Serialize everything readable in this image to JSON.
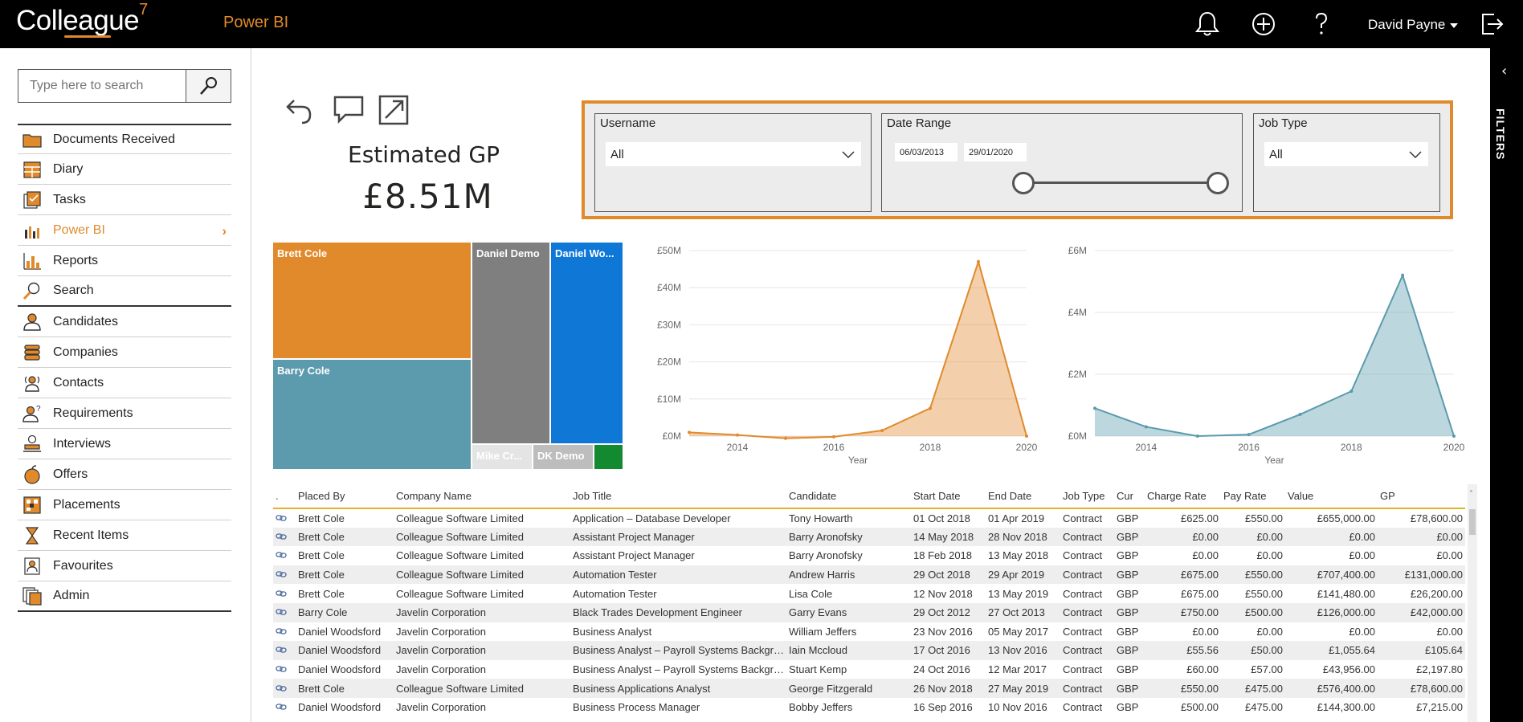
{
  "header": {
    "logo_text": "Colleague",
    "logo_sup": "7",
    "app_title": "Power BI",
    "user_name": "David Payne",
    "icons": [
      "bell-icon",
      "plus-circle-icon",
      "help-icon",
      "logout-icon"
    ]
  },
  "sidebar": {
    "search_placeholder": "Type here to search",
    "items": [
      {
        "label": "Documents Received",
        "icon": "folder-icon"
      },
      {
        "label": "Diary",
        "icon": "calendar-icon"
      },
      {
        "label": "Tasks",
        "icon": "tasks-icon"
      },
      {
        "label": "Power BI",
        "icon": "powerbi-icon",
        "active": true
      },
      {
        "label": "Reports",
        "icon": "bar-chart-icon"
      },
      {
        "label": "Search",
        "icon": "search-icon"
      },
      {
        "label": "Candidates",
        "icon": "person-icon"
      },
      {
        "label": "Companies",
        "icon": "companies-icon"
      },
      {
        "label": "Contacts",
        "icon": "contacts-icon"
      },
      {
        "label": "Requirements",
        "icon": "requirements-icon"
      },
      {
        "label": "Interviews",
        "icon": "interviews-icon"
      },
      {
        "label": "Offers",
        "icon": "offers-icon"
      },
      {
        "label": "Placements",
        "icon": "placements-icon"
      },
      {
        "label": "Recent Items",
        "icon": "hourglass-icon"
      },
      {
        "label": "Favourites",
        "icon": "favourites-icon"
      },
      {
        "label": "Admin",
        "icon": "admin-icon"
      }
    ]
  },
  "report": {
    "kpi_title": "Estimated GP",
    "kpi_value": "£8.51M",
    "filters_label": "FILTERS",
    "slicers": {
      "username": {
        "title": "Username",
        "value": "All"
      },
      "date_range": {
        "title": "Date Range",
        "start": "06/03/2013",
        "end": "29/01/2020"
      },
      "job_type": {
        "title": "Job Type",
        "value": "All"
      }
    },
    "treemap": [
      {
        "label": "Brett Cole",
        "color": "#e08a2c"
      },
      {
        "label": "Barry Cole",
        "color": "#5b9bad"
      },
      {
        "label": "Daniel Demo",
        "color": "#7f7f7f"
      },
      {
        "label": "Daniel Wo...",
        "color": "#0f78d6"
      },
      {
        "label": "Mike Cr...",
        "color": "#e4e4e4"
      },
      {
        "label": "DK Demo",
        "color": "#bdbdbd"
      },
      {
        "label": "",
        "color": "#138a2f"
      }
    ]
  },
  "chart_data": [
    {
      "type": "area",
      "x": [
        2013,
        2014,
        2015,
        2016,
        2017,
        2018,
        2019,
        2020
      ],
      "series": [
        {
          "values": [
            1.0,
            0.3,
            -0.6,
            -0.2,
            1.5,
            7.5,
            47.0,
            0.0
          ]
        }
      ],
      "xlabel": "Year",
      "ylabel": "",
      "ylim": [
        0,
        50
      ],
      "yticks": [
        "£0M",
        "£10M",
        "£20M",
        "£30M",
        "£40M",
        "£50M"
      ],
      "xticks": [
        "2014",
        "2016",
        "2018",
        "2020"
      ],
      "color": "#e08a2c",
      "grid": true
    },
    {
      "type": "area",
      "x": [
        2013,
        2014,
        2015,
        2016,
        2017,
        2018,
        2019,
        2020
      ],
      "series": [
        {
          "values": [
            0.9,
            0.3,
            0.0,
            0.05,
            0.7,
            1.45,
            5.2,
            0.0
          ]
        }
      ],
      "xlabel": "Year",
      "ylabel": "",
      "ylim": [
        0,
        6
      ],
      "yticks": [
        "£0M",
        "£2M",
        "£4M",
        "£6M"
      ],
      "xticks": [
        "2014",
        "2016",
        "2018",
        "2020"
      ],
      "color": "#5b9bad",
      "grid": true
    }
  ],
  "table": {
    "columns": [
      ".",
      "Placed By",
      "Company Name",
      "Job Title",
      "Candidate",
      "Start Date",
      "End Date",
      "Job Type",
      "Cur",
      "Charge Rate",
      "Pay Rate",
      "Value",
      "GP"
    ],
    "rows": [
      [
        "Brett Cole",
        "Colleague Software Limited",
        "Application – Database Developer",
        "Tony Howarth",
        "01 Oct 2018",
        "01 Apr 2019",
        "Contract",
        "GBP",
        "£625.00",
        "£550.00",
        "£655,000.00",
        "£78,600.00"
      ],
      [
        "Brett Cole",
        "Colleague Software Limited",
        "Assistant Project Manager",
        "Barry Aronofsky",
        "14 May 2018",
        "28 Nov 2018",
        "Contract",
        "GBP",
        "£0.00",
        "£0.00",
        "£0.00",
        "£0.00"
      ],
      [
        "Brett Cole",
        "Colleague Software Limited",
        "Assistant Project Manager",
        "Barry Aronofsky",
        "18 Feb 2018",
        "13 May 2018",
        "Contract",
        "GBP",
        "£0.00",
        "£0.00",
        "£0.00",
        "£0.00"
      ],
      [
        "Brett Cole",
        "Colleague Software Limited",
        "Automation Tester",
        "Andrew Harris",
        "29 Oct 2018",
        "29 Apr 2019",
        "Contract",
        "GBP",
        "£675.00",
        "£550.00",
        "£707,400.00",
        "£131,000.00"
      ],
      [
        "Brett Cole",
        "Colleague Software Limited",
        "Automation Tester",
        "Lisa Cole",
        "12 Nov 2018",
        "13 May 2019",
        "Contract",
        "GBP",
        "£675.00",
        "£550.00",
        "£141,480.00",
        "£26,200.00"
      ],
      [
        "Barry Cole",
        "Javelin Corporation",
        "Black Trades Development Engineer",
        "Garry Evans",
        "29 Oct 2012",
        "27 Oct 2013",
        "Contract",
        "GBP",
        "£750.00",
        "£500.00",
        "£126,000.00",
        "£42,000.00"
      ],
      [
        "Daniel Woodsford",
        "Javelin Corporation",
        "Business Analyst",
        "William Jeffers",
        "23 Nov 2016",
        "05 May 2017",
        "Contract",
        "GBP",
        "£0.00",
        "£0.00",
        "£0.00",
        "£0.00"
      ],
      [
        "Daniel Woodsford",
        "Javelin Corporation",
        "Business Analyst – Payroll Systems Background",
        "Iain Mccloud",
        "17 Oct 2016",
        "13 Nov 2016",
        "Contract",
        "GBP",
        "£55.56",
        "£50.00",
        "£1,055.64",
        "£105.64"
      ],
      [
        "Daniel Woodsford",
        "Javelin Corporation",
        "Business Analyst – Payroll Systems Background",
        "Stuart Kemp",
        "24 Oct 2016",
        "12 Mar 2017",
        "Contract",
        "GBP",
        "£60.00",
        "£57.00",
        "£43,956.00",
        "£2,197.80"
      ],
      [
        "Brett Cole",
        "Colleague Software Limited",
        "Business Applications Analyst",
        "George Fitzgerald",
        "26 Nov 2018",
        "27 May 2019",
        "Contract",
        "GBP",
        "£550.00",
        "£475.00",
        "£576,400.00",
        "£78,600.00"
      ],
      [
        "Daniel Woodsford",
        "Javelin Corporation",
        "Business Process Manager",
        "Bobby Jeffers",
        "16 Sep 2016",
        "10 Nov 2016",
        "Contract",
        "GBP",
        "£500.00",
        "£475.00",
        "£144,300.00",
        "£7,215.00"
      ]
    ]
  }
}
